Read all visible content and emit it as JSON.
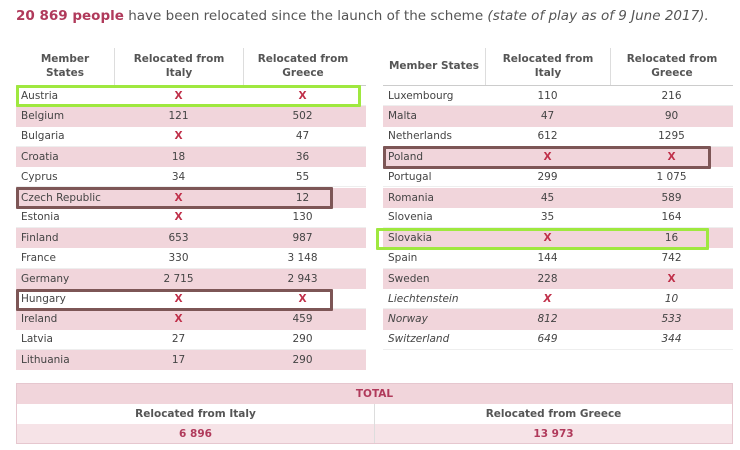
{
  "header": {
    "highlight": "20 869 people",
    "text": "have been relocated since the launch of the scheme",
    "note": "(state of play as of 9 June 2017)."
  },
  "tables": [
    {
      "columns": [
        "Member States",
        "Relocated from Italy",
        "Relocated from Greece"
      ],
      "rows": [
        [
          "Austria",
          "X",
          "X"
        ],
        [
          "Belgium",
          "121",
          "502"
        ],
        [
          "Bulgaria",
          "X",
          "47"
        ],
        [
          "Croatia",
          "18",
          "36"
        ],
        [
          "Cyprus",
          "34",
          "55"
        ],
        [
          "Czech Republic",
          "X",
          "12"
        ],
        [
          "Estonia",
          "X",
          "130"
        ],
        [
          "Finland",
          "653",
          "987"
        ],
        [
          "France",
          "330",
          "3 148"
        ],
        [
          "Germany",
          "2 715",
          "2 943"
        ],
        [
          "Hungary",
          "X",
          "X"
        ],
        [
          "Ireland",
          "X",
          "459"
        ],
        [
          "Latvia",
          "27",
          "290"
        ],
        [
          "Lithuania",
          "17",
          "290"
        ]
      ]
    },
    {
      "columns": [
        "Member States",
        "Relocated from Italy",
        "Relocated from Greece"
      ],
      "rows": [
        [
          "Luxembourg",
          "110",
          "216"
        ],
        [
          "Malta",
          "47",
          "90"
        ],
        [
          "Netherlands",
          "612",
          "1295"
        ],
        [
          "Poland",
          "X",
          "X"
        ],
        [
          "Portugal",
          "299",
          "1 075"
        ],
        [
          "Romania",
          "45",
          "589"
        ],
        [
          "Slovenia",
          "35",
          "164"
        ],
        [
          "Slovakia",
          "X",
          "16"
        ],
        [
          "Spain",
          "144",
          "742"
        ],
        [
          "Sweden",
          "228",
          "X"
        ],
        [
          "Liechtenstein",
          "X",
          "10"
        ],
        [
          "Norway",
          "812",
          "533"
        ],
        [
          "Switzerland",
          "649",
          "344"
        ]
      ]
    }
  ],
  "total": {
    "title": "TOTAL",
    "columns": [
      "Relocated from Italy",
      "Relocated from Greece"
    ],
    "values": [
      "6 896",
      "13 973"
    ]
  }
}
